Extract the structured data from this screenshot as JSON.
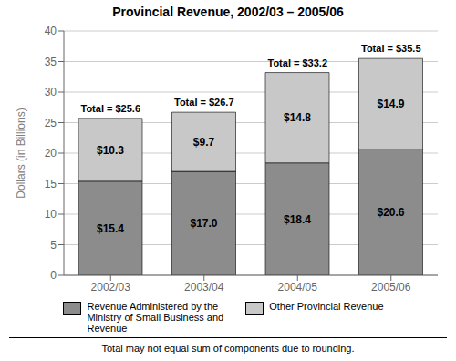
{
  "chart_data": {
    "type": "bar",
    "title": "Provincial Revenue, 2002/03 – 2005/06",
    "categories": [
      "2002/03",
      "2003/04",
      "2004/05",
      "2005/06"
    ],
    "stacked": true,
    "series": [
      {
        "name": "Revenue Administered by the\nMinistry of Small Business and\nRevenue",
        "color": "#8c8c8c",
        "values": [
          15.4,
          17.0,
          18.4,
          20.6
        ],
        "value_labels": [
          "$15.4",
          "$17.0",
          "$18.4",
          "$20.6"
        ]
      },
      {
        "name": "Other Provincial Revenue",
        "color": "#c8c8c8",
        "values": [
          10.3,
          9.7,
          14.8,
          14.9
        ],
        "value_labels": [
          "$10.3",
          "$9.7",
          "$14.8",
          "$14.9"
        ]
      }
    ],
    "totals": [
      25.6,
      26.7,
      33.2,
      35.5
    ],
    "total_labels": [
      "Total = $25.6",
      "Total = $26.7",
      "Total = $33.2",
      "Total = $35.5"
    ],
    "ylabel": "Dollars (in Billions)",
    "ylim": [
      0,
      40
    ],
    "yticks": [
      0,
      5,
      10,
      15,
      20,
      25,
      30,
      35,
      40
    ],
    "grid": true,
    "data_labels": true,
    "legend": "bottom",
    "footnote": "Total may not equal sum of components due to rounding."
  }
}
